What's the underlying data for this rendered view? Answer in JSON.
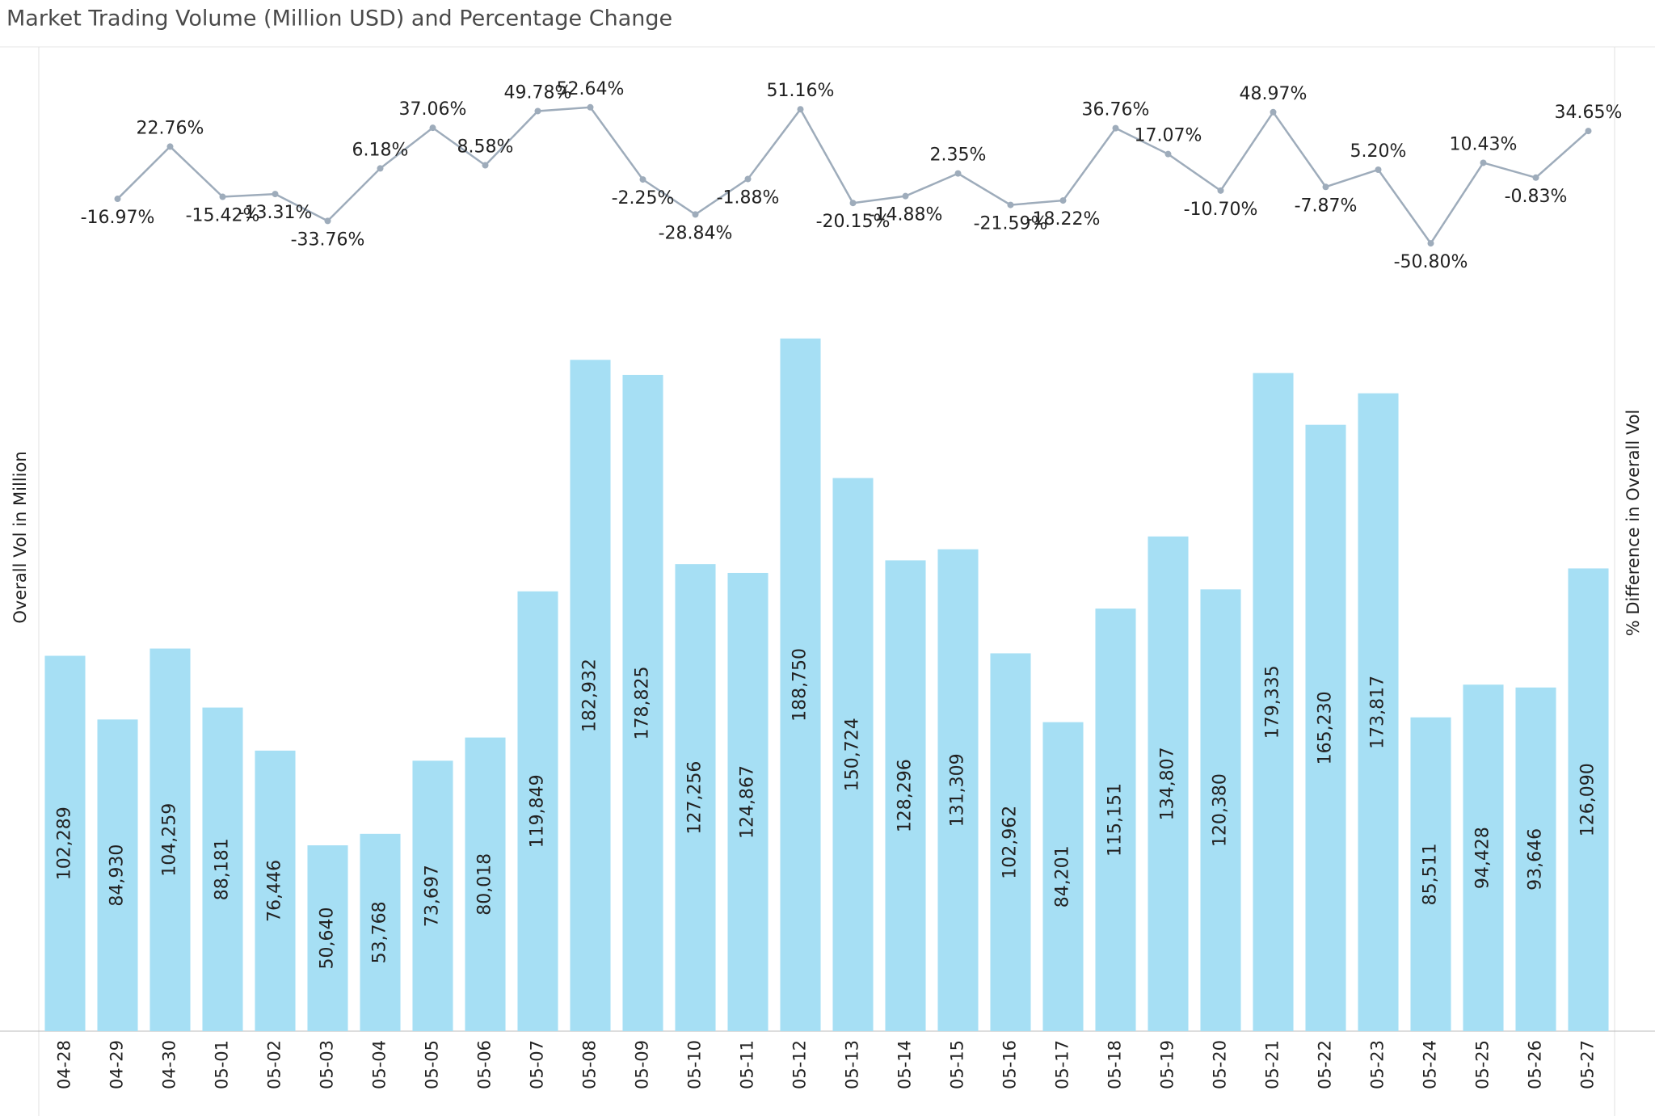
{
  "chart_data": {
    "type": "bar-line",
    "title": "Market Trading Volume (Million USD) and Percentage Change",
    "y_label": "Overall Vol in Million",
    "y2_label": "% Difference in Overall Vol",
    "categories": [
      "04-28",
      "04-29",
      "04-30",
      "05-01",
      "05-02",
      "05-03",
      "05-04",
      "05-05",
      "05-06",
      "05-07",
      "05-08",
      "05-09",
      "05-10",
      "05-11",
      "05-12",
      "05-13",
      "05-14",
      "05-15",
      "05-16",
      "05-17",
      "05-18",
      "05-19",
      "05-20",
      "05-21",
      "05-22",
      "05-23",
      "05-24",
      "05-25",
      "05-26",
      "05-27"
    ],
    "series": [
      {
        "type": "bar",
        "color": "#a6dff4",
        "values": [
          102289,
          84930,
          104259,
          88181,
          76446,
          50640,
          53768,
          73697,
          80018,
          119849,
          182932,
          178825,
          127256,
          124867,
          188750,
          150724,
          128296,
          131309,
          102962,
          84201,
          115151,
          134807,
          120380,
          179335,
          165230,
          173817,
          85511,
          94428,
          93646,
          126090
        ],
        "value_labels": [
          "102,289",
          "84,930",
          "104,259",
          "88,181",
          "76,446",
          "50,640",
          "53,768",
          "73,697",
          "80,018",
          "119,849",
          "182,932",
          "178,825",
          "127,256",
          "124,867",
          "188,750",
          "150,724",
          "128,296",
          "131,309",
          "102,962",
          "84,201",
          "115,151",
          "134,807",
          "120,380",
          "179,335",
          "165,230",
          "173,817",
          "85,511",
          "94,428",
          "93,646",
          "126,090"
        ]
      },
      {
        "type": "line",
        "axis": "y2",
        "color": "#9eacbb",
        "values": [
          null,
          -16.97,
          22.76,
          -15.42,
          -13.31,
          -33.76,
          6.18,
          37.06,
          8.58,
          49.78,
          52.64,
          -2.25,
          -28.84,
          -1.88,
          51.16,
          -20.15,
          -14.88,
          2.35,
          -21.59,
          -18.22,
          36.76,
          17.07,
          -10.7,
          48.97,
          -7.87,
          5.2,
          -50.8,
          10.43,
          -0.83,
          34.65
        ],
        "value_labels": [
          null,
          "-16.97%",
          "22.76%",
          "-15.42%",
          "-13.31%",
          "-33.76%",
          "6.18%",
          "37.06%",
          "8.58%",
          "49.78%",
          "52.64%",
          "-2.25%",
          "-28.84%",
          "-1.88%",
          "51.16%",
          "-20.15%",
          "-14.88%",
          "2.35%",
          "-21.59%",
          "-18.22%",
          "36.76%",
          "17.07%",
          "-10.70%",
          "48.97%",
          "-7.87%",
          "5.20%",
          "-50.80%",
          "10.43%",
          "-0.83%",
          "34.65%"
        ]
      }
    ],
    "ylim": [
      0,
      268000
    ],
    "y2lim": [
      -650,
      98
    ]
  }
}
